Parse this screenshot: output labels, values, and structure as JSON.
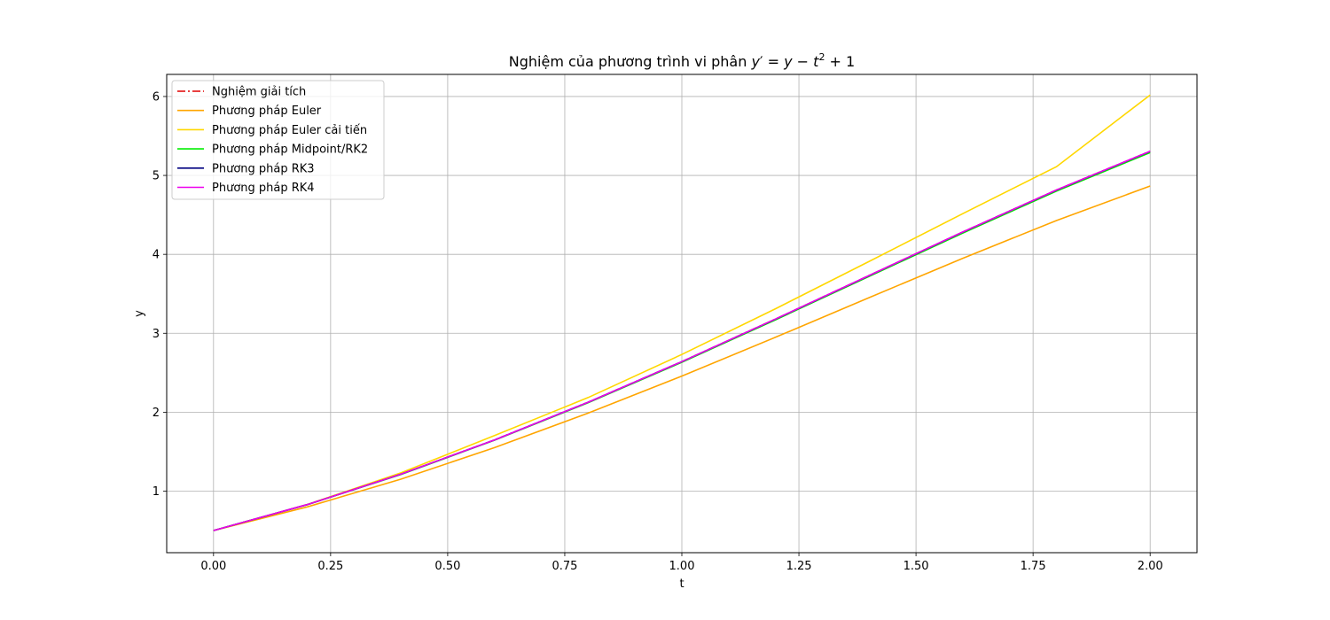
{
  "chart_data": {
    "type": "line",
    "title_prefix": "Nghiệm của phương trình vi phân ",
    "title_eq_a": "y",
    "title_eq_prime": "′",
    "title_eq_b": " = ",
    "title_eq_c": "y",
    "title_eq_d": " − ",
    "title_eq_e": "t",
    "title_eq_exp": "2",
    "title_eq_f": " + 1",
    "xlabel": "t",
    "ylabel": "y",
    "xlim": [
      -0.1,
      2.1
    ],
    "ylim": [
      0.22,
      6.28
    ],
    "xticks": [
      0.0,
      0.25,
      0.5,
      0.75,
      1.0,
      1.25,
      1.5,
      1.75,
      2.0
    ],
    "xtick_labels": [
      "0.00",
      "0.25",
      "0.50",
      "0.75",
      "1.00",
      "1.25",
      "1.50",
      "1.75",
      "2.00"
    ],
    "yticks": [
      1,
      2,
      3,
      4,
      5,
      6
    ],
    "ytick_labels": [
      "1",
      "2",
      "3",
      "4",
      "5",
      "6"
    ],
    "grid": true,
    "legend_position": "top-left",
    "x": [
      0.0,
      0.2,
      0.4,
      0.6,
      0.8,
      1.0,
      1.2,
      1.4,
      1.6,
      1.8,
      2.0
    ],
    "series": [
      {
        "name": "Nghiệm giải tích",
        "color": "#e00000",
        "dash": "dashdot",
        "values": [
          0.5,
          0.8293,
          1.2141,
          1.6489,
          2.1272,
          2.6409,
          3.1799,
          3.7324,
          4.2835,
          4.8152,
          5.3055
        ]
      },
      {
        "name": "Phương pháp Euler",
        "color": "#ffa500",
        "dash": "solid",
        "values": [
          0.5,
          0.8,
          1.152,
          1.5504,
          1.9885,
          2.4582,
          2.9498,
          3.4518,
          3.9501,
          4.4282,
          4.8658
        ]
      },
      {
        "name": "Phương pháp Euler cải tiến",
        "color": "#ffd700",
        "dash": "solid",
        "values": [
          0.5,
          0.83,
          1.231,
          1.7034,
          2.1857,
          2.7313,
          3.3109,
          3.9111,
          4.5156,
          5.1102,
          6.02
        ]
      },
      {
        "name": "Phương pháp Midpoint/RK2",
        "color": "#00ee00",
        "dash": "solid",
        "values": [
          0.5,
          0.828,
          1.2114,
          1.6447,
          2.1213,
          2.6332,
          3.1705,
          3.7212,
          4.2706,
          4.8009,
          5.2904
        ]
      },
      {
        "name": "Phương pháp RK3",
        "color": "#000080",
        "dash": "solid",
        "values": [
          0.5,
          0.8292,
          1.214,
          1.6487,
          2.1269,
          2.6405,
          3.1794,
          3.7318,
          4.2829,
          4.8146,
          5.3048
        ]
      },
      {
        "name": "Phương pháp RK4",
        "color": "#ee00ee",
        "dash": "solid",
        "values": [
          0.5,
          0.8293,
          1.2141,
          1.6489,
          2.1272,
          2.6409,
          3.1799,
          3.7324,
          4.2835,
          4.8152,
          5.3055
        ]
      }
    ]
  }
}
